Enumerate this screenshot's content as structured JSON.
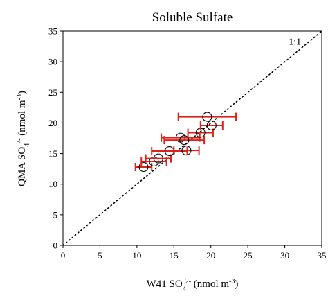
{
  "chart_data": {
    "type": "scatter",
    "title": "Soluble Sulfate",
    "xlabel": {
      "prefix": "W41 SO",
      "subscript": "4",
      "superscript": "2-",
      "unit_text": " (nmol m",
      "unit_sup": "-3",
      "unit_close": ")"
    },
    "ylabel": {
      "prefix": "QMA SO",
      "subscript": "4",
      "superscript": "2-",
      "unit_text": " (nmol m",
      "unit_sup": "-3",
      "unit_close": ")"
    },
    "xlim": [
      0,
      35
    ],
    "ylim": [
      0,
      35
    ],
    "xticks": [
      "0",
      "5",
      "10",
      "15",
      "20",
      "25",
      "30",
      "35"
    ],
    "yticks": [
      "0",
      "5",
      "10",
      "15",
      "20",
      "25",
      "30",
      "35"
    ],
    "reference_line": {
      "label": "1:1",
      "slope": 1,
      "intercept": 0,
      "style": "dotted"
    },
    "grid": false,
    "colors": {
      "marker": "#000000",
      "error_bar": "#e0201b",
      "axis": "#000000"
    },
    "points": [
      {
        "x": 10.9,
        "y": 12.8,
        "xerr": 1.1
      },
      {
        "x": 12.3,
        "y": 13.7,
        "xerr": 1.7
      },
      {
        "x": 12.9,
        "y": 14.2,
        "xerr": 1.7
      },
      {
        "x": 14.4,
        "y": 15.4,
        "xerr": 2.4
      },
      {
        "x": 16.7,
        "y": 15.5,
        "xerr": 1.7
      },
      {
        "x": 15.9,
        "y": 17.6,
        "xerr": 2.6
      },
      {
        "x": 16.4,
        "y": 17.2,
        "xerr": 2.7
      },
      {
        "x": 18.6,
        "y": 18.4,
        "xerr": 1.7
      },
      {
        "x": 20.1,
        "y": 19.6,
        "xerr": 1.5
      },
      {
        "x": 19.5,
        "y": 21.0,
        "xerr": 3.9
      }
    ]
  }
}
